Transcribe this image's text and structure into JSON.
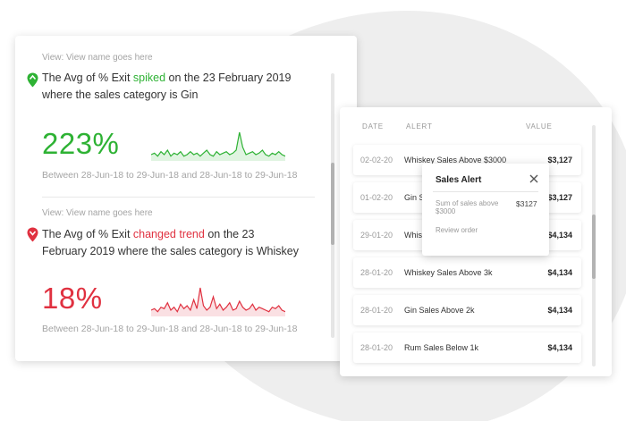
{
  "insights": [
    {
      "view_label": "View: View name goes here",
      "text_before": "The Avg of % Exit ",
      "highlight": "spiked",
      "text_after": " on the 23 February 2019 where the sales category is Gin",
      "value": "223%",
      "range": "Between 28-Jun-18 to 29-Jun-18 and 28-Jun-18 to 29-Jun-18",
      "color": "#2eb234",
      "pin_icon": "map-pin-icon",
      "sparkline": [
        3,
        4,
        2,
        5,
        3,
        6,
        2,
        4,
        3,
        5,
        2,
        3,
        5,
        3,
        4,
        2,
        4,
        6,
        3,
        2,
        5,
        3,
        4,
        5,
        3,
        4,
        6,
        18,
        8,
        3,
        4,
        5,
        3,
        4,
        6,
        3,
        2,
        4,
        3,
        5,
        3,
        2
      ]
    },
    {
      "view_label": "View: View name goes here",
      "text_before": "The Avg of % Exit ",
      "highlight": "changed trend",
      "text_after": "  on the 23 February 2019 where the sales category is Whiskey",
      "value": "18%",
      "range": "Between 28-Jun-18 to 29-Jun-18 and 28-Jun-18 to 29-Jun-18",
      "color": "#e03140",
      "pin_icon": "map-pin-icon",
      "sparkline": [
        3,
        4,
        2,
        5,
        4,
        8,
        3,
        5,
        2,
        7,
        4,
        6,
        3,
        10,
        4,
        18,
        6,
        3,
        5,
        12,
        4,
        7,
        3,
        5,
        8,
        3,
        4,
        9,
        5,
        3,
        4,
        7,
        3,
        5,
        4,
        3,
        2,
        5,
        4,
        6,
        3,
        2
      ]
    }
  ],
  "alerts": {
    "columns": {
      "date": "DATE",
      "alert": "ALERT",
      "value": "VALUE"
    },
    "rows": [
      {
        "date": "02-02-20",
        "alert": "Whiskey Sales Above $3000",
        "value": "$3,127"
      },
      {
        "date": "01-02-20",
        "alert": "Gin Sales Above $3000",
        "value": "$3,127"
      },
      {
        "date": "29-01-20",
        "alert": "Whiskey Sales Above 3k",
        "value": "$4,134"
      },
      {
        "date": "28-01-20",
        "alert": "Whiskey Sales Above 3k",
        "value": "$4,134"
      },
      {
        "date": "28-01-20",
        "alert": "Gin Sales Above 2k",
        "value": "$4,134"
      },
      {
        "date": "28-01-20",
        "alert": "Rum Sales Below 1k",
        "value": "$4,134"
      }
    ]
  },
  "popup": {
    "title": "Sales Alert",
    "close_icon": "close-icon",
    "label": "Sum of sales above $3000",
    "value": "$3127",
    "link": "Review order"
  }
}
